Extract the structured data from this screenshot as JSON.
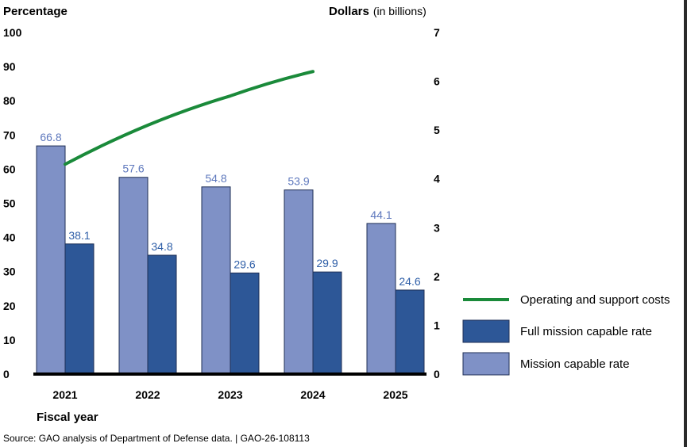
{
  "chart_data": {
    "type": "bar",
    "categories": [
      "2021",
      "2022",
      "2023",
      "2024",
      "2025"
    ],
    "xlabel": "Fiscal year",
    "y_left": {
      "label": "Percentage",
      "ticks": [
        "0",
        "10",
        "20",
        "30",
        "40",
        "50",
        "60",
        "70",
        "80",
        "90",
        "100"
      ],
      "ylim": [
        0,
        100
      ]
    },
    "y_right": {
      "label": "Dollars",
      "label_suffix": "(in billions)",
      "ticks": [
        "0",
        "1",
        "2",
        "3",
        "4",
        "5",
        "6",
        "7"
      ],
      "ylim": [
        0,
        7
      ]
    },
    "series": [
      {
        "name": "Mission capable rate",
        "type": "bar",
        "axis": "left",
        "color": "#7f91c6",
        "label_color": "#5e78bd",
        "values": [
          66.8,
          57.6,
          54.8,
          53.9,
          44.1
        ],
        "labels": [
          "66.8",
          "57.6",
          "54.8",
          "53.9",
          "44.1"
        ]
      },
      {
        "name": "Full mission capable rate",
        "type": "bar",
        "axis": "left",
        "color": "#2d5797",
        "label_color": "#2f5fa8",
        "values": [
          38.1,
          34.8,
          29.6,
          29.9,
          24.6
        ],
        "labels": [
          "38.1",
          "34.8",
          "29.6",
          "29.9",
          "24.6"
        ]
      },
      {
        "name": "Operating and support costs",
        "type": "line",
        "axis": "right",
        "color": "#1a8a3a",
        "values": [
          4.3,
          5.1,
          5.7,
          6.2,
          null
        ]
      }
    ],
    "legend_position": "right",
    "grid": false
  },
  "source_text": "Source: GAO analysis of Department of Defense data.  |  GAO-26-108113"
}
